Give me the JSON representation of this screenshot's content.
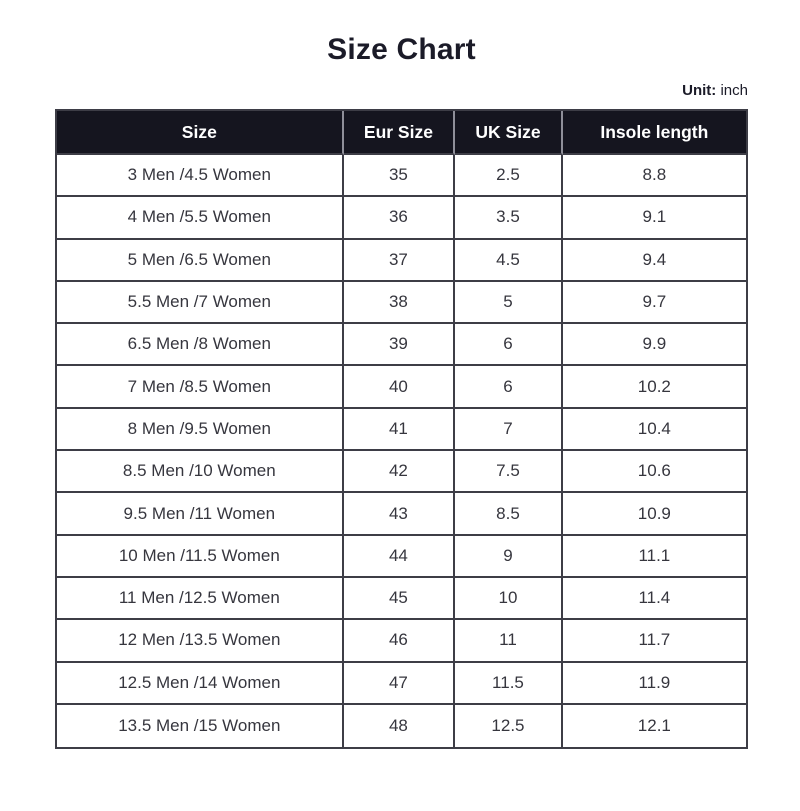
{
  "page": {
    "title": "Size Chart",
    "unit_label": "Unit:",
    "unit_value": "inch"
  },
  "colors": {
    "header_bg": "#15151f",
    "header_text": "#ffffff",
    "border": "#3d3d46",
    "header_divider": "#8f8f99",
    "cell_text": "#36363e",
    "title_text": "#1b1b28"
  },
  "chart_data": {
    "type": "table",
    "title": "Size Chart",
    "unit": "inch",
    "columns": [
      "Size",
      "Eur Size",
      "UK Size",
      "Insole length"
    ],
    "rows": [
      [
        "3 Men /4.5 Women",
        "35",
        "2.5",
        "8.8"
      ],
      [
        "4 Men /5.5 Women",
        "36",
        "3.5",
        "9.1"
      ],
      [
        "5 Men /6.5 Women",
        "37",
        "4.5",
        "9.4"
      ],
      [
        "5.5 Men /7 Women",
        "38",
        "5",
        "9.7"
      ],
      [
        "6.5 Men /8 Women",
        "39",
        "6",
        "9.9"
      ],
      [
        "7 Men /8.5 Women",
        "40",
        "6",
        "10.2"
      ],
      [
        "8 Men /9.5 Women",
        "41",
        "7",
        "10.4"
      ],
      [
        "8.5 Men /10 Women",
        "42",
        "7.5",
        "10.6"
      ],
      [
        "9.5 Men /11 Women",
        "43",
        "8.5",
        "10.9"
      ],
      [
        "10 Men /11.5 Women",
        "44",
        "9",
        "11.1"
      ],
      [
        "11 Men /12.5 Women",
        "45",
        "10",
        "11.4"
      ],
      [
        "12 Men /13.5 Women",
        "46",
        "11",
        "11.7"
      ],
      [
        "12.5 Men /14 Women",
        "47",
        "11.5",
        "11.9"
      ],
      [
        "13.5 Men /15 Women",
        "48",
        "12.5",
        "12.1"
      ]
    ]
  }
}
